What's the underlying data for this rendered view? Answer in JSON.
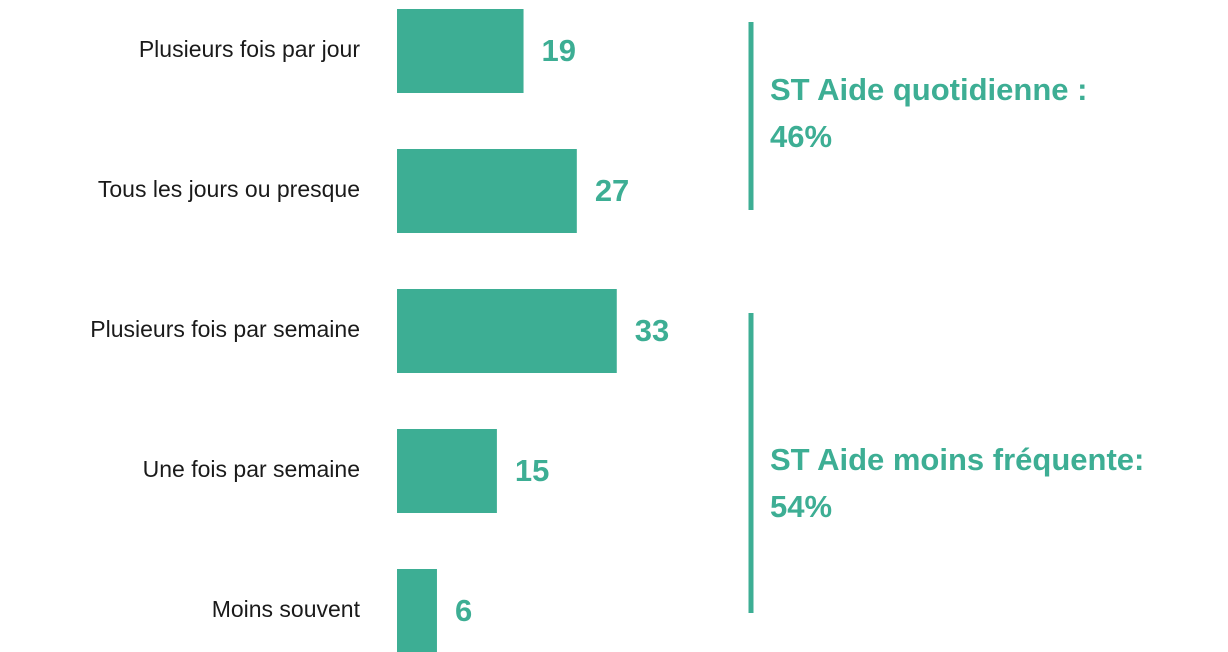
{
  "chart_data": {
    "type": "bar",
    "orientation": "horizontal",
    "categories": [
      "Plusieurs fois par jour",
      "Tous les jours ou presque",
      "Plusieurs fois par semaine",
      "Une fois par semaine",
      "Moins souvent"
    ],
    "values": [
      19,
      27,
      33,
      15,
      6
    ],
    "color": "#3dae94",
    "annotations": [
      {
        "lines": [
          "ST Aide quotidienne :",
          "46%"
        ]
      },
      {
        "lines": [
          "ST Aide moins fréquente:",
          "54%"
        ]
      }
    ]
  }
}
